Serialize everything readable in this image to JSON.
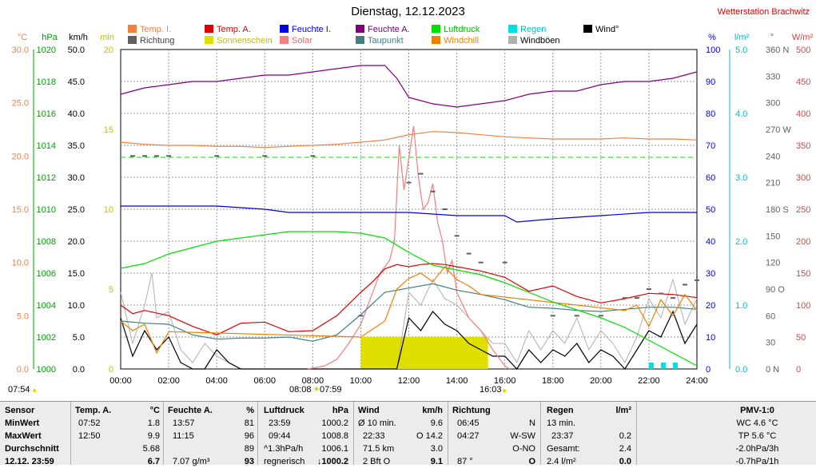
{
  "title": "Dienstag, 12.12.2023",
  "station": "Wetterstation Brachwitz",
  "legend": [
    {
      "label": "Temp. I.",
      "color": "#f08040",
      "text_color": "#f08040"
    },
    {
      "label": "Temp. A.",
      "color": "#e00000",
      "text_color": "#e00000"
    },
    {
      "label": "Feuchte I.",
      "color": "#0000e0",
      "text_color": "#0000e0"
    },
    {
      "label": "Feuchte A.",
      "color": "#800080",
      "text_color": "#800080"
    },
    {
      "label": "Luftdruck",
      "color": "#00e000",
      "text_color": "#00c000"
    },
    {
      "label": "Regen",
      "color": "#00e0e0",
      "text_color": "#00c0c0"
    },
    {
      "label": "Wind°",
      "color": "#000000",
      "text_color": "#000000"
    },
    {
      "label": "Richtung",
      "color": "#606060",
      "text_color": "#404040"
    },
    {
      "label": "Sonnenschein",
      "color": "#e0e000",
      "text_color": "#c0c000"
    },
    {
      "label": "Solar",
      "color": "#f08080",
      "text_color": "#f06060"
    },
    {
      "label": "Taupunkt",
      "color": "#408080",
      "text_color": "#408080"
    },
    {
      "label": "Windchill",
      "color": "#f08000",
      "text_color": "#f08000"
    },
    {
      "label": "Windböen",
      "color": "#b0b0b0",
      "text_color": "#000000"
    }
  ],
  "chart_data": {
    "type": "line",
    "title": "Dienstag, 12.12.2023",
    "x_ticks": [
      "00:00",
      "02:00",
      "04:00",
      "06:00",
      "08:00",
      "10:00",
      "12:00",
      "14:00",
      "16:00",
      "18:00",
      "20:00",
      "22:00",
      "24:00"
    ],
    "axes": [
      {
        "unit": "°C",
        "color": "#f08040",
        "min": 0,
        "max": 30,
        "ticks": [
          "0.0",
          "5.0",
          "10.0",
          "15.0",
          "20.0",
          "25.0",
          "30.0"
        ]
      },
      {
        "unit": "hPa",
        "color": "#00a000",
        "min": 1000,
        "max": 1020,
        "ticks": [
          "1000",
          "1002",
          "1004",
          "1006",
          "1008",
          "1010",
          "1012",
          "1014",
          "1016",
          "1018",
          "1020"
        ]
      },
      {
        "unit": "km/h",
        "color": "#000000",
        "min": 0,
        "max": 50,
        "ticks": [
          "0.0",
          "5.0",
          "10.0",
          "15.0",
          "20.0",
          "25.0",
          "30.0",
          "35.0",
          "40.0",
          "45.0",
          "50.0"
        ]
      },
      {
        "unit": "min",
        "color": "#c0c000",
        "min": 0,
        "max": 20,
        "ticks": [
          "0",
          "5",
          "10",
          "15",
          "20"
        ]
      },
      {
        "unit": "%",
        "color": "#0000e0",
        "min": 0,
        "max": 100,
        "ticks": [
          "0",
          "10",
          "20",
          "30",
          "40",
          "50",
          "60",
          "70",
          "80",
          "90",
          "100"
        ]
      },
      {
        "unit": "l/m²",
        "color": "#00c0c0",
        "min": 0,
        "max": 5,
        "ticks": [
          "0.0",
          "1.0",
          "2.0",
          "3.0",
          "4.0",
          "5.0"
        ]
      },
      {
        "unit": "°",
        "color": "#606060",
        "min": 0,
        "max": 360,
        "ticks": [
          "0 N",
          "30",
          "60",
          "90 O",
          "120",
          "150",
          "180 S",
          "210",
          "240",
          "270 W",
          "300",
          "330",
          "360 N"
        ]
      },
      {
        "unit": "W/m²",
        "color": "#e04040",
        "min": 0,
        "max": 500,
        "ticks": [
          "0",
          "50",
          "100",
          "150",
          "200",
          "250",
          "300",
          "350",
          "400",
          "450",
          "500"
        ]
      }
    ],
    "series": [
      {
        "name": "Feuchte A.",
        "unit": "%",
        "color": "#800080",
        "x": [
          0,
          0.5,
          1,
          2,
          3,
          4,
          5,
          6,
          7,
          8,
          9,
          10,
          11,
          11.5,
          12,
          12.5,
          13,
          14,
          15,
          16,
          17,
          18,
          19,
          20,
          21,
          22,
          23,
          24
        ],
        "values": [
          86,
          87,
          88,
          89,
          90,
          90,
          91,
          92,
          92,
          93,
          94,
          95,
          95,
          91,
          85,
          84,
          83,
          82,
          83,
          84,
          86,
          87,
          87,
          89,
          90,
          90,
          91,
          93
        ]
      },
      {
        "name": "Temp. I.",
        "unit": "°C",
        "color": "#f08040",
        "x": [
          0,
          1,
          2,
          3,
          4,
          5,
          6,
          7,
          8,
          9,
          10,
          11,
          12,
          13,
          14,
          15,
          16,
          17,
          18,
          19,
          20,
          21,
          22,
          23,
          24
        ],
        "values": [
          21.3,
          21.1,
          21.0,
          21.0,
          20.9,
          20.9,
          20.8,
          20.9,
          21.0,
          21.1,
          21.3,
          21.5,
          22.0,
          22.3,
          22.2,
          22.0,
          21.8,
          21.7,
          21.6,
          21.6,
          21.6,
          21.7,
          21.6,
          21.6,
          21.5
        ]
      },
      {
        "name": "Feuchte I.",
        "unit": "%",
        "color": "#0000e0",
        "x": [
          0,
          2,
          4,
          6,
          7,
          8,
          10,
          12,
          14,
          16,
          16.5,
          18,
          20,
          22,
          24
        ],
        "values": [
          51,
          51,
          51,
          50,
          49,
          49,
          49,
          49,
          48,
          48,
          46,
          47,
          48,
          49,
          49
        ]
      },
      {
        "name": "Luftdruck",
        "unit": "hPa",
        "color": "#00e000",
        "x": [
          0,
          1,
          2,
          3,
          4,
          5,
          6,
          7,
          8,
          9,
          10,
          11,
          12,
          13,
          14,
          15,
          16,
          17,
          18,
          19,
          20,
          21,
          22,
          23,
          24
        ],
        "values": [
          1006.3,
          1006.6,
          1007.2,
          1007.6,
          1008.0,
          1008.2,
          1008.4,
          1008.6,
          1008.6,
          1008.6,
          1008.5,
          1008.2,
          1007.3,
          1006.5,
          1006.2,
          1005.9,
          1005.4,
          1004.8,
          1004.2,
          1003.7,
          1003.2,
          1002.6,
          1001.8,
          1001.0,
          1000.2
        ]
      },
      {
        "name": "Temp. A.",
        "unit": "°C",
        "color": "#e00000",
        "x": [
          0,
          0.5,
          1,
          2,
          3,
          4,
          5,
          6,
          7,
          8,
          9,
          10,
          10.5,
          11,
          11.5,
          12,
          12.5,
          13,
          13.5,
          14,
          15,
          16,
          17,
          18,
          19,
          20,
          21,
          22,
          23,
          24
        ],
        "values": [
          6.0,
          5.2,
          5.5,
          5.0,
          4.0,
          3.2,
          4.3,
          4.4,
          3.5,
          3.6,
          5.0,
          7.2,
          8.2,
          9.4,
          9.8,
          9.6,
          9.8,
          9.9,
          9.8,
          9.6,
          9.2,
          8.6,
          7.3,
          7.8,
          6.8,
          6.2,
          6.6,
          7.1,
          7.0,
          6.7
        ]
      },
      {
        "name": "Taupunkt",
        "unit": "°C",
        "color": "#408080",
        "x": [
          0,
          1,
          2,
          3,
          4,
          5,
          6,
          7,
          8,
          9,
          10,
          11,
          12,
          13,
          14,
          15,
          16,
          17,
          18,
          19,
          20,
          21,
          22,
          23,
          24
        ],
        "values": [
          4.5,
          4.3,
          4.2,
          3.2,
          2.8,
          2.9,
          2.9,
          3.0,
          2.6,
          3.2,
          5.1,
          7.2,
          7.6,
          8.0,
          7.4,
          7.0,
          6.5,
          5.8,
          5.7,
          5.5,
          5.4,
          5.6,
          5.8,
          5.8,
          5.6
        ]
      },
      {
        "name": "Solar",
        "unit": "W/m²",
        "color": "#f08080",
        "x": [
          7.8,
          8.5,
          9,
          9.5,
          10,
          10.5,
          10.8,
          11,
          11.2,
          11.4,
          11.6,
          11.8,
          12,
          12.2,
          12.4,
          12.6,
          12.8,
          13,
          13.2,
          13.4,
          13.6,
          13.8,
          14,
          14.5,
          15,
          15.5,
          16,
          16.2
        ],
        "values": [
          0,
          5,
          15,
          40,
          70,
          120,
          150,
          160,
          170,
          200,
          350,
          280,
          330,
          380,
          300,
          250,
          260,
          290,
          230,
          200,
          150,
          170,
          120,
          80,
          60,
          30,
          5,
          0
        ]
      },
      {
        "name": "Wind",
        "unit": "km/h",
        "color": "#000000",
        "x": [
          0,
          0.5,
          1,
          1.5,
          2,
          2.5,
          3,
          3.5,
          4,
          4.5,
          5,
          7,
          8,
          9,
          10,
          10.5,
          11,
          11.5,
          12,
          12.5,
          13,
          13.5,
          14,
          14.5,
          15,
          15.5,
          16,
          16.5,
          17,
          17.5,
          18,
          18.5,
          19,
          19.5,
          20,
          20.5,
          21,
          21.5,
          22,
          22.5,
          23,
          23.5,
          24
        ],
        "values": [
          8,
          2,
          6,
          3,
          5,
          1,
          0,
          0,
          3,
          1,
          0,
          0,
          0,
          0,
          0,
          0,
          0,
          0,
          8,
          6,
          9,
          7,
          6,
          4,
          3,
          2,
          2,
          0,
          3,
          1,
          3,
          2,
          4,
          1,
          3,
          2,
          0,
          3,
          6,
          5,
          9,
          4,
          7
        ]
      },
      {
        "name": "Windböen",
        "unit": "km/h",
        "color": "#b0b0b0",
        "x": [
          0,
          0.5,
          1,
          1.3,
          1.5,
          2,
          2.5,
          3,
          3.5,
          4,
          5,
          10,
          11,
          11.5,
          12,
          12.5,
          13,
          13.5,
          14,
          14.5,
          15,
          15.5,
          16,
          16.5,
          17,
          17.5,
          18,
          18.5,
          19,
          19.5,
          20,
          20.5,
          21,
          21.5,
          22,
          22.5,
          23,
          23.5,
          24
        ],
        "values": [
          12,
          4,
          10,
          15,
          8,
          9,
          3,
          1,
          4,
          2,
          0,
          0,
          0,
          0,
          12,
          10,
          14,
          11,
          10,
          8,
          6,
          4,
          4,
          1,
          6,
          3,
          6,
          4,
          8,
          3,
          6,
          4,
          1,
          5,
          11,
          8,
          14,
          7,
          11
        ]
      },
      {
        "name": "Windchill",
        "unit": "°C",
        "color": "#f08000",
        "x": [
          0,
          0.5,
          1,
          1.5,
          2,
          10,
          11,
          11.5,
          12,
          12.5,
          13,
          13.5,
          14,
          14.5,
          15,
          21,
          21.5,
          22,
          22.5,
          23,
          23.5,
          24
        ],
        "values": [
          4.5,
          3.6,
          4.2,
          1.5,
          3.5,
          3.0,
          4.5,
          7.5,
          8.5,
          9.0,
          8.2,
          9.6,
          8.4,
          7.8,
          7.0,
          5.5,
          6.0,
          4.0,
          6.5,
          5.0,
          7.0,
          5.5
        ]
      },
      {
        "name": "Richtung",
        "unit": "°",
        "color": "#606060",
        "x": [
          0.5,
          1,
          1.5,
          2,
          4,
          6,
          8,
          10,
          12,
          12.5,
          13,
          13.5,
          14,
          14.5,
          15,
          16,
          18,
          19,
          20,
          21,
          21.5,
          22,
          22.5,
          23,
          23.5,
          24
        ],
        "values": [
          240,
          240,
          240,
          240,
          240,
          240,
          240,
          60,
          210,
          220,
          200,
          180,
          150,
          130,
          120,
          120,
          60,
          60,
          60,
          80,
          80,
          90,
          85,
          80,
          95,
          100
        ]
      },
      {
        "name": "Regen",
        "unit": "l/m²",
        "color": "#00e0e0",
        "x": [
          22.0,
          22.5,
          23.0,
          23.5
        ],
        "values": [
          0.1,
          0.1,
          0.1,
          0
        ]
      },
      {
        "name": "Sonnenschein",
        "unit": "min",
        "color": "#e0e000",
        "x": [
          10.0,
          15.3
        ],
        "values": [
          2,
          2
        ]
      }
    ],
    "sun": {
      "sunrise": "07:54",
      "noon_left": "08:08",
      "noon_right": "07:59",
      "sunset": "16:03"
    },
    "grid": true,
    "legend_position": "top"
  },
  "table": {
    "sensor": {
      "hdr": "Sensor",
      "rows": [
        "MinWert",
        "MaxWert",
        "Durchschnitt",
        "12.12. 23:59"
      ]
    },
    "temp_a": {
      "hdr": "Temp. A.",
      "unit": "°C",
      "rows": [
        [
          "07:52",
          "1.8"
        ],
        [
          "12:50",
          "9.9"
        ],
        [
          "",
          "5.68"
        ],
        [
          "",
          "6.7"
        ]
      ]
    },
    "feuchte_a": {
      "hdr": "Feuchte A.",
      "unit": "%",
      "rows": [
        [
          "13:57",
          "81"
        ],
        [
          "11:15",
          "96"
        ],
        [
          "",
          "89"
        ],
        [
          "7.07 g/m³",
          "93"
        ]
      ]
    },
    "luftdruck": {
      "hdr": "Luftdruck",
      "unit": "hPa",
      "rows": [
        [
          "23:59",
          "1000.2"
        ],
        [
          "09:44",
          "1008.8"
        ],
        [
          "^1.3hPa/h",
          "1006.1"
        ],
        [
          "regnerisch",
          "↓1000.2"
        ]
      ]
    },
    "wind": {
      "hdr": "Wind",
      "unit": "km/h",
      "rows": [
        [
          "Ø 10 min.",
          "9.6"
        ],
        [
          "22:33",
          "O 14.2"
        ],
        [
          "71.5 km",
          "3.0"
        ],
        [
          "2 Bft O",
          "9.1"
        ]
      ]
    },
    "richtung": {
      "hdr": "Richtung",
      "unit": "",
      "rows": [
        [
          "06:45",
          "N"
        ],
        [
          "04:27",
          "W-SW"
        ],
        [
          "",
          "O-NO"
        ],
        [
          "87 °",
          "O"
        ]
      ]
    },
    "regen": {
      "hdr": "Regen",
      "unit": "l/m²",
      "rows": [
        [
          "13 min.",
          ""
        ],
        [
          "23:37",
          "0.2"
        ],
        [
          "Gesamt:",
          "2.4"
        ],
        [
          "2.4 l/m²",
          "0.0"
        ]
      ]
    },
    "pmv": {
      "hdr": "PMV-1:0",
      "rows": [
        "WC 4.6 °C",
        "TP 5.6 °C",
        "-2.0hPa/3h",
        "-0.7hPa/1h"
      ]
    }
  }
}
